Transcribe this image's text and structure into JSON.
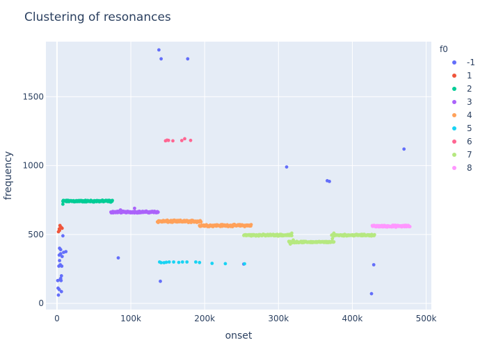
{
  "chart_data": {
    "type": "scatter",
    "title": "Clustering of resonances",
    "xlabel": "onset",
    "ylabel": "frequency",
    "xlim": [
      -15000,
      507000
    ],
    "ylim": [
      -45,
      1900
    ],
    "x_ticks": [
      0,
      100000,
      200000,
      300000,
      400000,
      500000
    ],
    "x_tick_labels": [
      "0",
      "100k",
      "200k",
      "300k",
      "400k",
      "500k"
    ],
    "y_ticks": [
      0,
      500,
      1000,
      1500
    ],
    "y_tick_labels": [
      "0",
      "500",
      "1000",
      "1500"
    ],
    "grid": true,
    "legend": {
      "title": "f0",
      "placement": "right"
    },
    "series": [
      {
        "name": "-1",
        "color": "#636efa",
        "points": [
          [
            2000,
            60
          ],
          [
            1500,
            110
          ],
          [
            3000,
            100
          ],
          [
            1000,
            165
          ],
          [
            4000,
            170
          ],
          [
            5000,
            180
          ],
          [
            6000,
            200
          ],
          [
            5500,
            165
          ],
          [
            2500,
            270
          ],
          [
            4500,
            280
          ],
          [
            3500,
            310
          ],
          [
            6500,
            270
          ],
          [
            3000,
            350
          ],
          [
            5000,
            360
          ],
          [
            7000,
            340
          ],
          [
            9000,
            370
          ],
          [
            12000,
            375
          ],
          [
            3500,
            400
          ],
          [
            5000,
            390
          ],
          [
            8000,
            490
          ],
          [
            6000,
            85
          ],
          [
            83000,
            330
          ],
          [
            138000,
            1840
          ],
          [
            141000,
            1775
          ],
          [
            177000,
            1775
          ],
          [
            140000,
            160
          ],
          [
            253000,
            285
          ],
          [
            311000,
            990
          ],
          [
            366000,
            890
          ],
          [
            369000,
            885
          ],
          [
            470000,
            1120
          ],
          [
            429000,
            280
          ],
          [
            426000,
            70
          ]
        ]
      },
      {
        "name": "1",
        "color": "#ef553b",
        "points": [
          [
            2000,
            520
          ],
          [
            3000,
            540
          ],
          [
            4000,
            565
          ],
          [
            5000,
            555
          ],
          [
            6000,
            550
          ],
          [
            7000,
            545
          ],
          [
            3500,
            530
          ]
        ]
      },
      {
        "name": "2",
        "color": "#00cc96",
        "range": [
          8000,
          75000
        ],
        "y": 742,
        "jitter": 8,
        "count": 130,
        "extra": [
          [
            8000,
            720
          ],
          [
            9000,
            745
          ],
          [
            73000,
            735
          ]
        ]
      },
      {
        "name": "3",
        "color": "#ab63fa",
        "range": [
          73000,
          137000
        ],
        "y": 663,
        "jitter": 8,
        "count": 120,
        "extra": [
          [
            105000,
            690
          ],
          [
            86000,
            678
          ]
        ]
      },
      {
        "name": "4",
        "color": "#ffa15a",
        "segments": [
          {
            "range": [
              136000,
              195000
            ],
            "y": 595,
            "jitter": 10,
            "count": 120
          },
          {
            "range": [
              193000,
              263000
            ],
            "y": 565,
            "jitter": 9,
            "count": 120
          }
        ]
      },
      {
        "name": "5",
        "color": "#19d3f3",
        "points": [
          [
            139000,
            300
          ],
          [
            141000,
            295
          ],
          [
            145000,
            295
          ],
          [
            148000,
            298
          ],
          [
            152000,
            300
          ],
          [
            158000,
            300
          ],
          [
            165000,
            297
          ],
          [
            170000,
            300
          ],
          [
            176000,
            300
          ],
          [
            188000,
            300
          ],
          [
            193000,
            296
          ],
          [
            210000,
            290
          ],
          [
            228000,
            288
          ],
          [
            254000,
            287
          ]
        ]
      },
      {
        "name": "6",
        "color": "#ff6692",
        "points": [
          [
            147000,
            1180
          ],
          [
            149000,
            1185
          ],
          [
            151000,
            1183
          ],
          [
            157000,
            1180
          ],
          [
            169000,
            1182
          ],
          [
            173000,
            1195
          ],
          [
            181000,
            1183
          ]
        ]
      },
      {
        "name": "7",
        "color": "#b6e880",
        "segments": [
          {
            "range": [
              253000,
              318000
            ],
            "y": 495,
            "jitter": 8,
            "count": 120
          },
          {
            "range": [
              314000,
              375000
            ],
            "y": 445,
            "jitter": 6,
            "count": 120
          },
          {
            "range": [
              372000,
              430000
            ],
            "y": 495,
            "jitter": 7,
            "count": 110
          }
        ],
        "extra": [
          [
            316000,
            430
          ],
          [
            318000,
            510
          ],
          [
            320000,
            460
          ],
          [
            373000,
            470
          ],
          [
            375000,
            510
          ]
        ]
      },
      {
        "name": "8",
        "color": "#ff97ff",
        "range": [
          427000,
          478000
        ],
        "y": 560,
        "jitter": 8,
        "count": 100
      }
    ]
  }
}
